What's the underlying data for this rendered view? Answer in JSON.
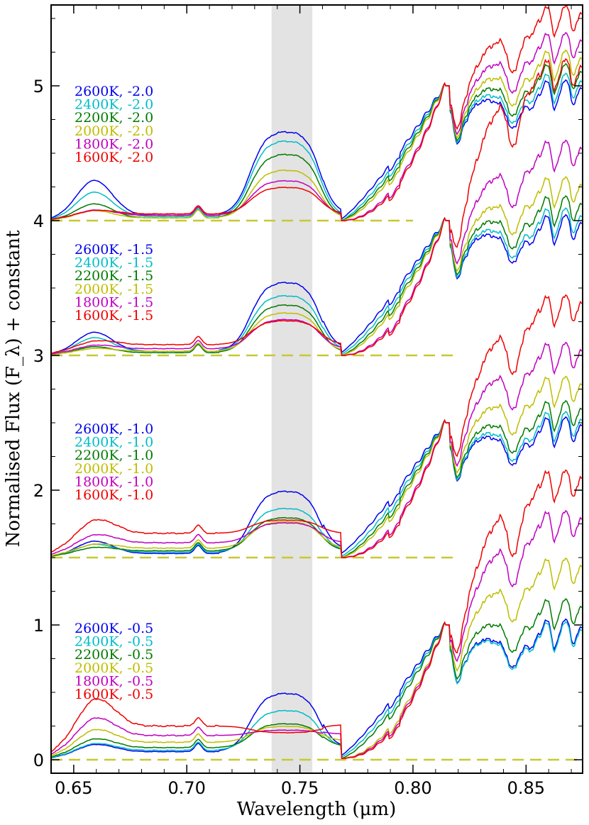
{
  "chart_data": {
    "type": "line",
    "title": "",
    "xlabel": "Wavelength (μm)",
    "ylabel": "Normalised Flux (F_λ) + constant",
    "xlim": [
      0.64,
      0.875
    ],
    "ylim": [
      -0.1,
      5.6
    ],
    "x_ticks": [
      0.65,
      0.7,
      0.75,
      0.8,
      0.85
    ],
    "x_tick_labels": [
      "0.65",
      "0.70",
      "0.75",
      "0.80",
      "0.85"
    ],
    "y_ticks": [
      0,
      1,
      2,
      3,
      4,
      5
    ],
    "y_tick_labels": [
      "0",
      "1",
      "2",
      "3",
      "4",
      "5"
    ],
    "shaded_band": {
      "x_range": [
        0.7375,
        0.7555
      ],
      "color": "#e3e3e3"
    },
    "colors": {
      "2600K": "#0000ee",
      "2400K": "#00bcc8",
      "2200K": "#007a00",
      "2000K": "#bdbd00",
      "1800K": "#c000c0",
      "1600K": "#ee0000",
      "baseline": "#c8c832"
    },
    "temperatures": [
      "2600K",
      "2400K",
      "2200K",
      "2000K",
      "1800K",
      "1600K"
    ],
    "panels": [
      {
        "metallicity": "-2.0",
        "offset": 4.0,
        "baseline_x_end": 0.8,
        "legend": [
          "2600K, -2.0",
          "2400K, -2.0",
          "2200K, -2.0",
          "2000K, -2.0",
          "1800K, -2.0",
          "1600K, -2.0"
        ],
        "band_peak": [
          0.67,
          0.6,
          0.5,
          0.38,
          0.3,
          0.25
        ],
        "left_bump": [
          0.27,
          0.19,
          0.11,
          0.06,
          0.05,
          0.04
        ],
        "left_level": [
          0.04,
          0.03,
          0.02,
          0.02,
          0.04,
          0.05
        ],
        "dip_min": [
          0.01,
          0.0,
          0.0,
          0.0,
          0.0,
          0.0
        ],
        "red_level": [
          0.0,
          0.05,
          0.12,
          0.22,
          0.35,
          0.55
        ],
        "anchor_x": 0.814,
        "anchor_y": 1.0
      },
      {
        "metallicity": "-1.5",
        "offset": 3.0,
        "baseline_x_end": 0.82,
        "legend": [
          "2600K, -1.5",
          "2400K, -1.5",
          "2200K, -1.5",
          "2000K, -1.5",
          "1800K, -1.5",
          "1600K, -1.5"
        ],
        "band_peak": [
          0.55,
          0.45,
          0.38,
          0.32,
          0.27,
          0.26
        ],
        "left_bump": [
          0.15,
          0.11,
          0.05,
          0.03,
          0.04,
          0.05
        ],
        "left_level": [
          0.03,
          0.03,
          0.02,
          0.03,
          0.05,
          0.08
        ],
        "dip_min": [
          0.02,
          0.01,
          0.0,
          0.0,
          0.0,
          0.0
        ],
        "red_level": [
          0.0,
          0.05,
          0.14,
          0.28,
          0.55,
          1.15
        ],
        "anchor_x": 0.814,
        "anchor_y": 1.0
      },
      {
        "metallicity": "-1.0",
        "offset": 1.5,
        "baseline_x_end": 0.82,
        "legend": [
          "2600K, -1.0",
          "2400K, -1.0",
          "2200K, -1.0",
          "2000K, -1.0",
          "1800K, -1.0",
          "1600K, -1.0"
        ],
        "band_peak": [
          0.5,
          0.37,
          0.3,
          0.27,
          0.26,
          0.28
        ],
        "left_bump": [
          0.1,
          0.07,
          0.04,
          0.05,
          0.09,
          0.15
        ],
        "left_level": [
          0.03,
          0.04,
          0.05,
          0.07,
          0.11,
          0.18
        ],
        "dip_min": [
          0.03,
          0.01,
          0.0,
          0.0,
          0.0,
          0.0
        ],
        "red_level": [
          0.0,
          0.04,
          0.12,
          0.3,
          0.55,
          0.9
        ],
        "anchor_x": 0.814,
        "anchor_y": 1.0
      },
      {
        "metallicity": "-0.5",
        "offset": 0.0,
        "baseline_x_end": 0.875,
        "legend": [
          "2600K, -0.5",
          "2400K, -0.5",
          "2200K, -0.5",
          "2000K, -0.5",
          "1800K, -0.5",
          "1600K, -0.5"
        ],
        "band_peak": [
          0.5,
          0.37,
          0.27,
          0.25,
          0.22,
          0.2
        ],
        "left_bump": [
          0.07,
          0.07,
          0.09,
          0.13,
          0.18,
          0.27
        ],
        "left_level": [
          0.06,
          0.07,
          0.09,
          0.13,
          0.18,
          0.25
        ],
        "dip_min": [
          0.03,
          0.02,
          0.01,
          0.01,
          0.01,
          0.01
        ],
        "red_level": [
          0.0,
          -0.02,
          0.15,
          0.45,
          0.8,
          1.1
        ],
        "anchor_x": 0.814,
        "anchor_y": 1.0
      }
    ]
  }
}
